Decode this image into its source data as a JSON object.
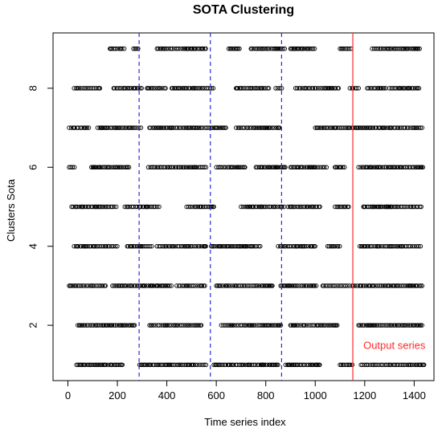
{
  "chart_data": {
    "type": "scatter",
    "title": "SOTA Clustering",
    "xlabel": "Time series index",
    "ylabel": "Clusters  Sota",
    "xlim": [
      -60,
      1480
    ],
    "ylim": [
      0.6,
      9.4
    ],
    "x_ticks": [
      0,
      200,
      400,
      600,
      800,
      1000,
      1200,
      1400
    ],
    "y_ticks": [
      2,
      4,
      6,
      8
    ],
    "x_tick_labels": [
      "0",
      "200",
      "400",
      "600",
      "800",
      "1000",
      "1200",
      "1400"
    ],
    "y_tick_labels": [
      "2",
      "4",
      "6",
      "8"
    ],
    "marker": "open-circle",
    "grid": false,
    "vertical_lines": [
      {
        "x": 288,
        "style": "dashed",
        "color": "#2b2bd8"
      },
      {
        "x": 576,
        "style": "dashed",
        "color": "#2b2bd8"
      },
      {
        "x": 864,
        "style": "dashed",
        "color": "#2b2bd8"
      },
      {
        "x": 1152,
        "style": "solid",
        "color": "#ff2a2a"
      }
    ],
    "annotations": [
      {
        "text": "Output series",
        "x": 1320,
        "y": 1.4,
        "color": "#ff2a2a"
      }
    ],
    "series": [
      {
        "cluster": 1,
        "segments": [
          [
            35,
            225
          ],
          [
            290,
            560
          ],
          [
            590,
            850
          ],
          [
            880,
            1020
          ],
          [
            1100,
            1150
          ],
          [
            1185,
            1440
          ]
        ]
      },
      {
        "cluster": 2,
        "segments": [
          [
            40,
            270
          ],
          [
            330,
            540
          ],
          [
            620,
            865
          ],
          [
            900,
            1090
          ],
          [
            1175,
            1435
          ]
        ]
      },
      {
        "cluster": 3,
        "segments": [
          [
            5,
            160
          ],
          [
            180,
            420
          ],
          [
            440,
            560
          ],
          [
            600,
            830
          ],
          [
            860,
            1010
          ],
          [
            1030,
            1140
          ],
          [
            1150,
            1435
          ]
        ]
      },
      {
        "cluster": 4,
        "segments": [
          [
            25,
            200
          ],
          [
            240,
            340
          ],
          [
            360,
            560
          ],
          [
            580,
            780
          ],
          [
            850,
            1000
          ],
          [
            1050,
            1100
          ],
          [
            1180,
            1430
          ]
        ]
      },
      {
        "cluster": 5,
        "segments": [
          [
            15,
            200
          ],
          [
            230,
            370
          ],
          [
            480,
            590
          ],
          [
            700,
            875
          ],
          [
            890,
            1020
          ],
          [
            1080,
            1140
          ],
          [
            1195,
            1435
          ]
        ]
      },
      {
        "cluster": 6,
        "segments": [
          [
            5,
            30
          ],
          [
            95,
            250
          ],
          [
            325,
            560
          ],
          [
            600,
            720
          ],
          [
            760,
            880
          ],
          [
            900,
            1050
          ],
          [
            1080,
            1120
          ],
          [
            1175,
            1440
          ]
        ]
      },
      {
        "cluster": 7,
        "segments": [
          [
            5,
            90
          ],
          [
            120,
            300
          ],
          [
            330,
            560
          ],
          [
            560,
            640
          ],
          [
            680,
            860
          ],
          [
            1000,
            1440
          ]
        ]
      },
      {
        "cluster": 8,
        "segments": [
          [
            25,
            130
          ],
          [
            185,
            300
          ],
          [
            320,
            400
          ],
          [
            420,
            590
          ],
          [
            680,
            820
          ],
          [
            840,
            870
          ],
          [
            920,
            1100
          ],
          [
            1140,
            1180
          ],
          [
            1210,
            1290
          ],
          [
            1300,
            1420
          ]
        ]
      },
      {
        "cluster": 9,
        "segments": [
          [
            170,
            230
          ],
          [
            265,
            290
          ],
          [
            360,
            560
          ],
          [
            650,
            700
          ],
          [
            740,
            880
          ],
          [
            900,
            1000
          ],
          [
            1100,
            1150
          ],
          [
            1230,
            1430
          ]
        ]
      }
    ]
  }
}
